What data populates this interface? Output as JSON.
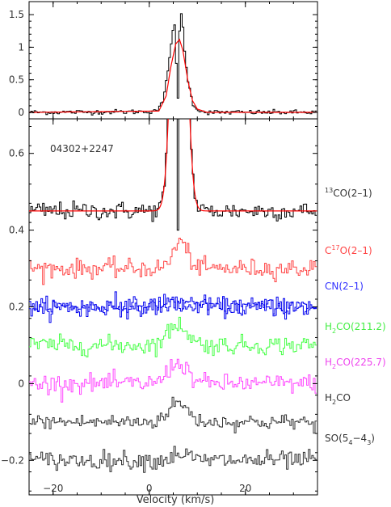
{
  "chart_data": [
    {
      "type": "line",
      "panel": "top",
      "x_range": [
        -25,
        35
      ],
      "ylim": [
        -0.1,
        1.7
      ],
      "y_ticks": [
        0,
        0.5,
        1,
        1.5
      ],
      "y_tick_labels": [
        "0",
        "0.5",
        "1",
        "1.5"
      ],
      "series": [
        {
          "line": "13CO(2-1)",
          "color": "#000000",
          "style": "histogram",
          "points": [
            [
              -25,
              0
            ],
            [
              0,
              0.01
            ],
            [
              2,
              0.05
            ],
            [
              3,
              0.2
            ],
            [
              4,
              0.7
            ],
            [
              4.6,
              1.1
            ],
            [
              5,
              1.3
            ],
            [
              5.4,
              1.32
            ],
            [
              5.9,
              0.0
            ],
            [
              6.4,
              1.45
            ],
            [
              6.8,
              1.55
            ],
            [
              7.2,
              1.1
            ],
            [
              8,
              0.5
            ],
            [
              9,
              0.15
            ],
            [
              10,
              0.04
            ],
            [
              12,
              0.0
            ],
            [
              35,
              0
            ]
          ]
        },
        {
          "name": "fit",
          "color": "#ff0000",
          "style": "smooth",
          "points": [
            [
              -25,
              0
            ],
            [
              2,
              0.02
            ],
            [
              3.5,
              0.25
            ],
            [
              4.5,
              0.7
            ],
            [
              5.5,
              1.05
            ],
            [
              6.3,
              1.12
            ],
            [
              7,
              0.95
            ],
            [
              8,
              0.5
            ],
            [
              9,
              0.18
            ],
            [
              10,
              0.05
            ],
            [
              12,
              0.0
            ],
            [
              35,
              0
            ]
          ]
        }
      ]
    },
    {
      "type": "line",
      "panel": "bottom",
      "xlabel": "Velocity (km/s)",
      "x_range": [
        -25,
        35
      ],
      "x_ticks": [
        -20,
        0,
        20
      ],
      "x_tick_labels": [
        "−20",
        "0",
        "20"
      ],
      "ylim": [
        -0.29,
        0.69
      ],
      "y_ticks": [
        -0.2,
        0,
        0.2,
        0.4,
        0.6
      ],
      "y_tick_labels": [
        "−0.2",
        "0",
        "0.2",
        "0.4",
        "0.6"
      ],
      "source": "04302+2247",
      "series": [
        {
          "line": "13CO(2-1)",
          "color": "#000000",
          "baseline": 0.45,
          "noise": 0.012,
          "peak_center": 6.2,
          "peak_width": 1.3,
          "peak_amp": 1.1,
          "absorption_at": 5.9,
          "fit": true
        },
        {
          "line": "C17O(2-1)",
          "color": "#ff4444",
          "baseline": 0.3,
          "noise": 0.012,
          "peak_center": 6.5,
          "peak_width": 1.5,
          "peak_amp": 0.07
        },
        {
          "line": "CN(2-1)",
          "color": "#0000ee",
          "baseline": 0.2,
          "noise": 0.012,
          "peak_center": 6,
          "peak_width": 3,
          "peak_amp": 0.015
        },
        {
          "line": "H2CO(211.2)",
          "color": "#44ff44",
          "baseline": 0.1,
          "noise": 0.012,
          "peak_center": 6,
          "peak_width": 2,
          "peak_amp": 0.055
        },
        {
          "line": "H2CO(225.7)",
          "color": "#ff44ff",
          "baseline": 0.0,
          "noise": 0.012,
          "peak_center": 6,
          "peak_width": 2,
          "peak_amp": 0.055
        },
        {
          "line": "H2CO",
          "color": "#333333",
          "baseline": -0.1,
          "noise": 0.01,
          "peak_center": 6,
          "peak_width": 2,
          "peak_amp": 0.05
        },
        {
          "line": "SO(54-43)",
          "color": "#333333",
          "baseline": -0.2,
          "noise": 0.012,
          "peak_center": 6.5,
          "peak_width": 1.5,
          "peak_amp": 0.02
        }
      ]
    }
  ],
  "labels": {
    "source": "04302+2247",
    "xlabel": "Velocity (km/s)",
    "lines": [
      {
        "pre": "",
        "sup": "13",
        "mid": "CO(2–1)",
        "sub": "",
        "post": "",
        "color": "#333333"
      },
      {
        "pre": "C",
        "sup": "17",
        "mid": "O(2–1)",
        "sub": "",
        "post": "",
        "color": "#ff4444"
      },
      {
        "pre": "CN(2–1)",
        "sup": "",
        "mid": "",
        "sub": "",
        "post": "",
        "color": "#3333ff"
      },
      {
        "pre": "H",
        "sup": "",
        "mid": "",
        "sub": "2",
        "post": "CO(211.2)",
        "color": "#44ee44"
      },
      {
        "pre": "H",
        "sup": "",
        "mid": "",
        "sub": "2",
        "post": "CO(225.7)",
        "color": "#ee44ee"
      },
      {
        "pre": "H",
        "sup": "",
        "mid": "",
        "sub": "2",
        "post": "CO",
        "color": "#333333"
      },
      {
        "pre": "SO(5",
        "sup": "",
        "mid": "",
        "sub": "4",
        "post": "−4",
        "sub2": "3",
        "post2": ")",
        "color": "#333333"
      }
    ]
  }
}
